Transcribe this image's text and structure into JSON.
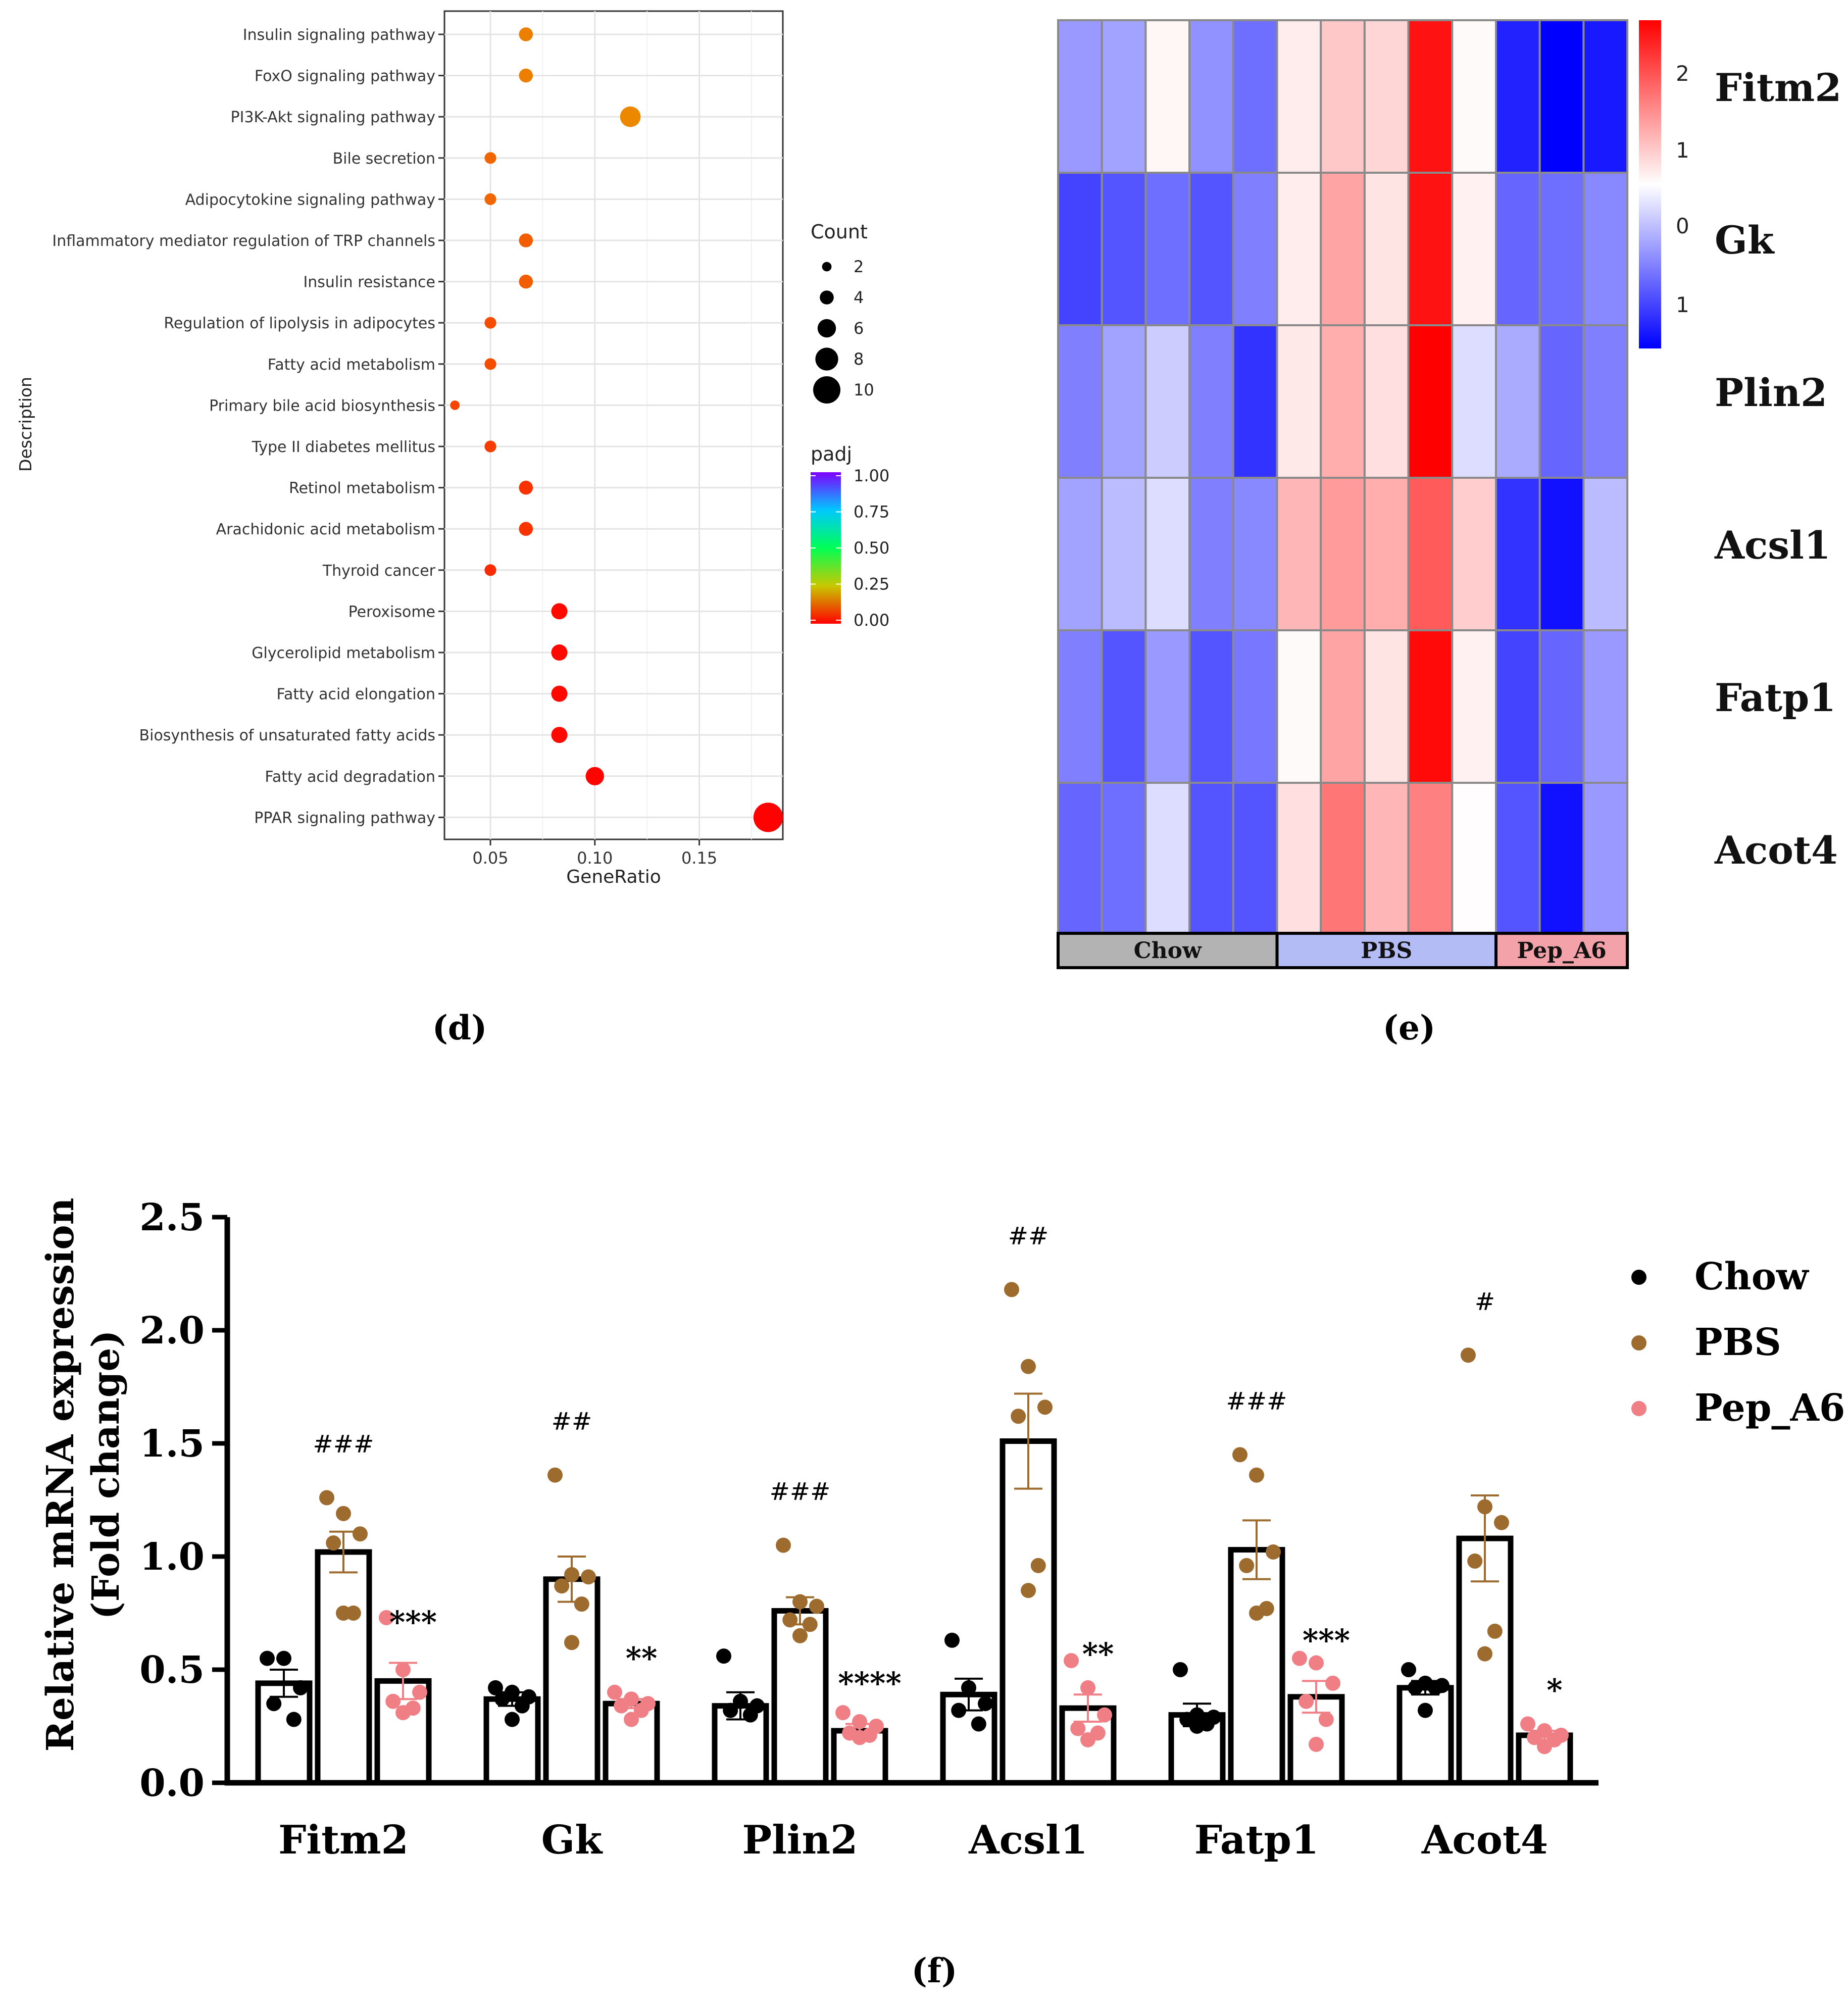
{
  "panels": {
    "d_label": "(d)",
    "e_label": "(e)",
    "f_label": "(f)"
  },
  "chart_data": [
    {
      "type": "scatter",
      "panel": "d",
      "title": "",
      "xlabel": "GeneRatio",
      "ylabel": "Description",
      "xlim": [
        0.028,
        0.19
      ],
      "xticks": [
        0.05,
        0.1,
        0.15
      ],
      "xtick_labels": [
        "0.05",
        "0.10",
        "0.15"
      ],
      "grid": true,
      "categories": [
        "Insulin signaling pathway",
        "FoxO signaling pathway",
        "PI3K-Akt signaling pathway",
        "Bile secretion",
        "Adipocytokine signaling pathway",
        "Inflammatory mediator regulation of TRP channels",
        "Insulin resistance",
        "Regulation of lipolysis in adipocytes",
        "Fatty acid metabolism",
        "Primary bile acid biosynthesis",
        "Type II diabetes mellitus",
        "Retinol metabolism",
        "Arachidonic acid metabolism",
        "Thyroid cancer",
        "Peroxisome",
        "Glycerolipid metabolism",
        "Fatty acid elongation",
        "Biosynthesis of unsaturated fatty acids",
        "Fatty acid degradation",
        "PPAR signaling pathway"
      ],
      "gene_ratio": [
        0.067,
        0.067,
        0.117,
        0.05,
        0.05,
        0.067,
        0.067,
        0.05,
        0.05,
        0.033,
        0.05,
        0.067,
        0.067,
        0.05,
        0.083,
        0.083,
        0.083,
        0.083,
        0.1,
        0.183
      ],
      "count": [
        4,
        4,
        7,
        3,
        3,
        4,
        4,
        3,
        3,
        2,
        3,
        4,
        4,
        3,
        5,
        5,
        5,
        5,
        6,
        11
      ],
      "padj": [
        0.15,
        0.15,
        0.16,
        0.12,
        0.12,
        0.11,
        0.11,
        0.09,
        0.09,
        0.08,
        0.07,
        0.06,
        0.06,
        0.05,
        0.01,
        0.01,
        0.01,
        0.01,
        0.005,
        0.001
      ],
      "size_legend": {
        "title": "Count",
        "values": [
          2,
          4,
          6,
          8,
          10
        ],
        "labels": [
          "2",
          "4",
          "6",
          "8",
          "10"
        ]
      },
      "color_legend": {
        "title": "padj",
        "ticks": [
          1.0,
          0.75,
          0.5,
          0.25,
          0.0
        ],
        "labels": [
          "1.00",
          "0.75",
          "0.50",
          "0.25",
          "0.00"
        ]
      },
      "legend_position": "right"
    },
    {
      "type": "heatmap",
      "panel": "e",
      "rows": [
        "Fitm2",
        "Gk",
        "Plin2",
        "Acsl1",
        "Fatp1",
        "Acot4"
      ],
      "groups": [
        {
          "name": "Chow",
          "columns": 5,
          "color": "#b3b3b3"
        },
        {
          "name": "PBS",
          "columns": 5,
          "color": "#b3bcf5"
        },
        {
          "name": "Pep_A6",
          "columns": 3,
          "color": "#f2a2a8"
        }
      ],
      "values": [
        [
          -0.6,
          -0.55,
          0.1,
          -0.65,
          -0.85,
          0.2,
          0.6,
          0.45,
          2.6,
          0.05,
          -1.3,
          -1.5,
          -1.35
        ],
        [
          -1.1,
          -1.0,
          -0.85,
          -1.0,
          -0.75,
          0.2,
          1.0,
          0.3,
          2.6,
          0.15,
          -0.9,
          -0.85,
          -0.7
        ],
        [
          -0.75,
          -0.55,
          -0.3,
          -0.75,
          -1.2,
          0.25,
          0.9,
          0.35,
          2.8,
          -0.2,
          -0.5,
          -0.9,
          -0.75
        ],
        [
          -0.55,
          -0.4,
          -0.2,
          -0.75,
          -0.7,
          0.8,
          1.1,
          0.9,
          1.8,
          0.55,
          -1.2,
          -1.4,
          -0.4
        ],
        [
          -0.75,
          -1.0,
          -0.6,
          -1.0,
          -0.8,
          0.05,
          1.0,
          0.3,
          2.7,
          0.15,
          -1.1,
          -0.9,
          -0.6
        ],
        [
          -0.9,
          -0.85,
          -0.2,
          -1.0,
          -1.0,
          0.35,
          1.5,
          0.8,
          1.4,
          0.02,
          -1.0,
          -1.4,
          -0.6
        ]
      ],
      "color_range": [
        -1.5,
        2.8
      ],
      "scale_labels": [
        "2",
        "1",
        "0",
        "1"
      ],
      "scale_colors": {
        "low": "#0000ff",
        "mid": "#ffffff",
        "high": "#ff0000"
      }
    },
    {
      "type": "bar",
      "panel": "f",
      "title": "",
      "xlabel": "",
      "ylabel_line1": "Relative mRNA expression",
      "ylabel_line2": "(Fold change)",
      "ylim": [
        0,
        2.5
      ],
      "yticks": [
        0.0,
        0.5,
        1.0,
        1.5,
        2.0,
        2.5
      ],
      "ytick_labels": [
        "0.0",
        "0.5",
        "1.0",
        "1.5",
        "2.0",
        "2.5"
      ],
      "categories": [
        "Fitm2",
        "Gk",
        "Plin2",
        "Acsl1",
        "Fatp1",
        "Acot4"
      ],
      "series": [
        {
          "name": "Chow",
          "color": "#000000",
          "values": [
            0.44,
            0.37,
            0.34,
            0.39,
            0.3,
            0.42
          ],
          "sem": [
            0.06,
            0.03,
            0.06,
            0.07,
            0.05,
            0.03
          ],
          "points": [
            [
              0.55,
              0.55,
              0.42,
              0.35,
              0.28
            ],
            [
              0.42,
              0.4,
              0.38,
              0.37,
              0.34,
              0.28
            ],
            [
              0.56,
              0.36,
              0.34,
              0.32,
              0.3
            ],
            [
              0.63,
              0.42,
              0.35,
              0.32,
              0.26
            ],
            [
              0.5,
              0.3,
              0.29,
              0.28,
              0.26,
              0.25
            ],
            [
              0.5,
              0.44,
              0.43,
              0.42,
              0.42,
              0.32
            ]
          ]
        },
        {
          "name": "PBS",
          "color": "#9c6b2d",
          "values": [
            1.02,
            0.9,
            0.76,
            1.51,
            1.03,
            1.08
          ],
          "sem": [
            0.09,
            0.1,
            0.06,
            0.21,
            0.13,
            0.19
          ],
          "points": [
            [
              1.26,
              1.19,
              1.1,
              1.06,
              0.75,
              0.75
            ],
            [
              1.36,
              0.92,
              0.91,
              0.87,
              0.79,
              0.62
            ],
            [
              1.05,
              0.8,
              0.78,
              0.72,
              0.7,
              0.65
            ],
            [
              2.18,
              1.84,
              1.66,
              1.62,
              0.96,
              0.85
            ],
            [
              1.45,
              1.36,
              1.02,
              0.96,
              0.77,
              0.75
            ],
            [
              1.89,
              1.22,
              1.15,
              0.98,
              0.67,
              0.57
            ]
          ]
        },
        {
          "name": "Pep_A6",
          "color": "#f07f85",
          "values": [
            0.45,
            0.35,
            0.23,
            0.33,
            0.38,
            0.21
          ],
          "sem": [
            0.08,
            0.02,
            0.03,
            0.06,
            0.07,
            0.02
          ],
          "points": [
            [
              0.73,
              0.5,
              0.4,
              0.36,
              0.33,
              0.31
            ],
            [
              0.4,
              0.37,
              0.35,
              0.34,
              0.32,
              0.28
            ],
            [
              0.31,
              0.27,
              0.25,
              0.22,
              0.21,
              0.2
            ],
            [
              0.54,
              0.42,
              0.3,
              0.24,
              0.22,
              0.19
            ],
            [
              0.55,
              0.53,
              0.44,
              0.36,
              0.28,
              0.17
            ],
            [
              0.26,
              0.23,
              0.21,
              0.2,
              0.19,
              0.16
            ]
          ]
        }
      ],
      "annotations_hash": [
        "###",
        "##",
        "###",
        "##",
        "###",
        "#"
      ],
      "annotations_star": [
        "***",
        "**",
        "****",
        "**",
        "***",
        "*"
      ],
      "legend_position": "top-right"
    }
  ]
}
